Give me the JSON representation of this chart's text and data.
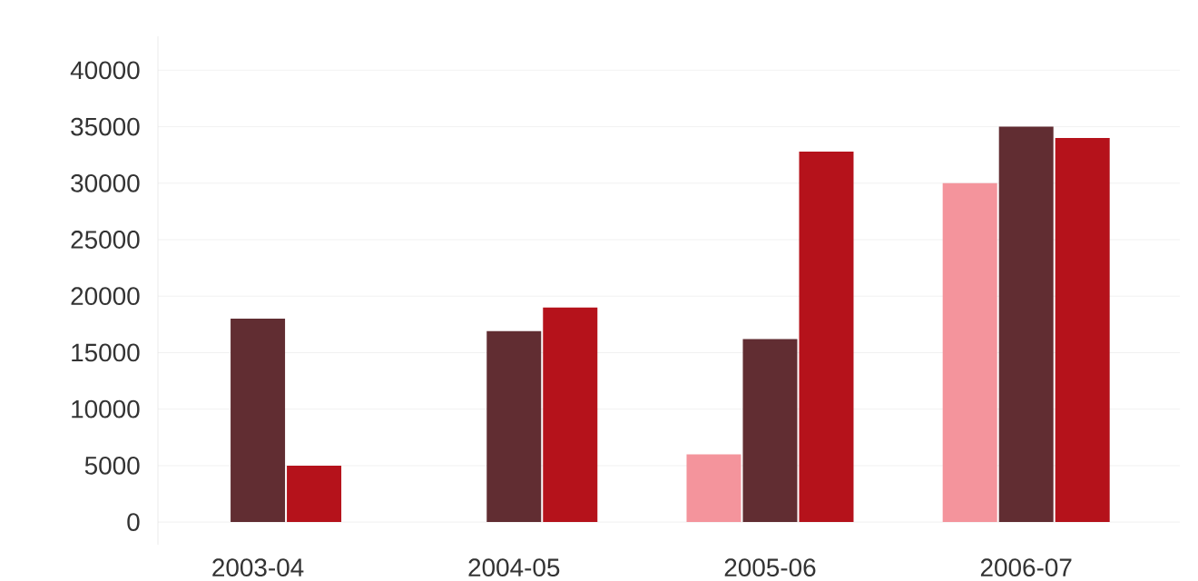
{
  "chart_data": {
    "type": "bar",
    "categories": [
      "2003-04",
      "2004-05",
      "2005-06",
      "2006-07"
    ],
    "series": [
      {
        "color": "#f4949c",
        "values": [
          null,
          null,
          6000,
          30000
        ]
      },
      {
        "color": "#612d32",
        "values": [
          18000,
          16900,
          16200,
          35000
        ]
      },
      {
        "color": "#b5121b",
        "values": [
          5000,
          19000,
          32800,
          34000
        ]
      }
    ],
    "ylim": [
      -2000,
      43000
    ],
    "yticks": [
      0,
      5000,
      10000,
      15000,
      20000,
      25000,
      30000,
      35000,
      40000
    ],
    "grid": "y"
  }
}
